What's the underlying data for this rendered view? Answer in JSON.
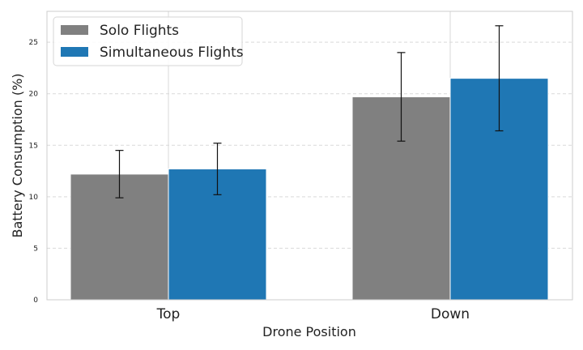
{
  "chart_data": {
    "type": "bar",
    "categories": [
      "Top",
      "Down"
    ],
    "series": [
      {
        "name": "Solo Flights",
        "color": "#808080",
        "values": [
          12.2,
          19.7
        ],
        "errors": [
          2.3,
          4.3
        ]
      },
      {
        "name": "Simultaneous Flights",
        "color": "#1f77b4",
        "values": [
          12.7,
          21.5
        ],
        "errors": [
          2.5,
          5.1
        ]
      }
    ],
    "xlabel": "Drone Position",
    "ylabel": "Battery Consumption (%)",
    "ylim": [
      0,
      28
    ],
    "yticks": [
      0,
      5,
      10,
      15,
      20,
      25
    ],
    "grid": true,
    "legend_position": "top-left"
  }
}
